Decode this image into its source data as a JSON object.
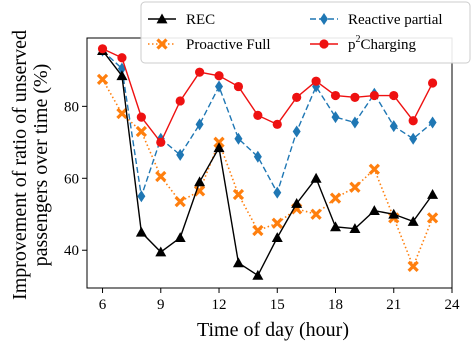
{
  "chart_data": {
    "type": "line",
    "xlabel": "Time of day (hour)",
    "ylabel_lines": [
      "Improvement of ratio of unserved",
      "passengers over time (%)"
    ],
    "xlim": [
      5.2,
      24
    ],
    "ylim": [
      29.5,
      99
    ],
    "xticks": [
      6,
      9,
      12,
      15,
      18,
      21,
      24
    ],
    "yticks": [
      40,
      60,
      80
    ],
    "x": [
      6,
      7,
      8,
      9,
      10,
      11,
      12,
      13,
      14,
      15,
      16,
      17,
      18,
      19,
      20,
      21,
      22,
      23
    ],
    "legend_placement": "top (above plot, two columns)",
    "series": [
      {
        "name": "REC",
        "color": "#000000",
        "linestyle": "solid",
        "marker": "triangle",
        "values": [
          95.5,
          88.5,
          45,
          39.5,
          43.5,
          59,
          68.5,
          36.5,
          33,
          43.5,
          53,
          60,
          46.5,
          46,
          51,
          50,
          48,
          55.5
        ]
      },
      {
        "name": "Proactive Full",
        "color": "#ff7f0e",
        "linestyle": "dotted",
        "marker": "x",
        "values": [
          87.5,
          78,
          73,
          60.5,
          53.5,
          56.5,
          70,
          55.5,
          45.5,
          47.5,
          51.5,
          50,
          54.5,
          57.5,
          62.5,
          49,
          35.5,
          49
        ]
      },
      {
        "name": "Reactive partial",
        "color": "#1f77b4",
        "linestyle": "dashed",
        "marker": "diamond",
        "values": [
          95.5,
          90.5,
          55,
          71,
          66.5,
          75,
          85.5,
          71,
          66,
          56,
          73,
          85.5,
          77,
          75.5,
          83.5,
          74.5,
          71,
          75.5
        ]
      },
      {
        "name": "p2Charging",
        "name_base": "p",
        "name_sup": "2",
        "name_rest": "Charging",
        "color": "#ee1111",
        "linestyle": "solid",
        "marker": "circle",
        "values": [
          96,
          93.5,
          77,
          70,
          81.5,
          89.5,
          88.5,
          85.5,
          77.5,
          75,
          82.5,
          87,
          83,
          82.5,
          83,
          83,
          76,
          86.5
        ]
      }
    ]
  }
}
